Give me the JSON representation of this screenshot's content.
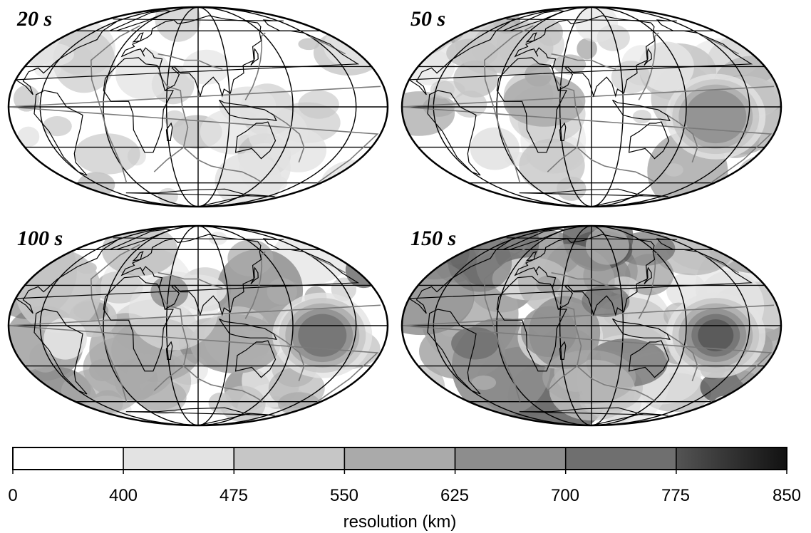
{
  "figure": {
    "panels": [
      {
        "label": "20 s",
        "intensity": 0.18,
        "seed": 3
      },
      {
        "label": "50 s",
        "intensity": 0.4,
        "seed": 7
      },
      {
        "label": "100 s",
        "intensity": 0.62,
        "seed": 11
      },
      {
        "label": "150 s",
        "intensity": 0.85,
        "seed": 19
      }
    ],
    "colorbar": {
      "title": "resolution (km)",
      "ticks": [
        "0",
        "400",
        "475",
        "550",
        "625",
        "700",
        "775",
        "850"
      ],
      "segment_colors": [
        "#ffffff",
        "#e3e3e3",
        "#c6c6c6",
        "#aaaaaa",
        "#8d8d8d",
        "#6f6f6f",
        "#545454"
      ],
      "last_segment_gradient": [
        "#545454",
        "#111111"
      ]
    },
    "colors": {
      "coastline": "#000000",
      "plate_boundary": "#7a7a7a",
      "graticule": "#000000",
      "outline": "#000000"
    }
  }
}
